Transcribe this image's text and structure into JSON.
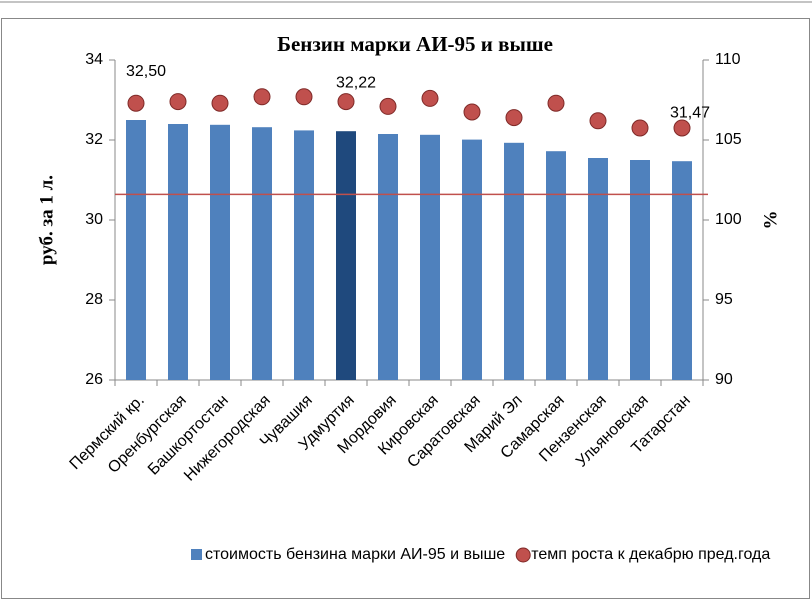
{
  "chart_data": {
    "type": "bar",
    "title": "Бензин марки АИ-95 и выше",
    "ylabel": "руб. за 1 л.",
    "y2label": "%",
    "categories": [
      "Пермский кр.",
      "Оренбургская",
      "Башкортостан",
      "Нижегородская",
      "Чувашия",
      "Удмуртия",
      "Мордовия",
      "Кировская",
      "Саратовская",
      "Марий Эл",
      "Самарская",
      "Пензенская",
      "Ульяновская",
      "Татарстан"
    ],
    "series": [
      {
        "name": "стоимость бензина марки АИ-95 и выше",
        "type": "bar",
        "color": "#4f81bd",
        "highlight_index": 5,
        "highlight_color": "#1f497d",
        "values": [
          32.5,
          32.4,
          32.38,
          32.32,
          32.24,
          32.22,
          32.15,
          32.13,
          32.01,
          31.93,
          31.72,
          31.55,
          31.5,
          31.47
        ],
        "value_labels": [
          "32,50",
          null,
          null,
          null,
          null,
          "32,22",
          null,
          null,
          null,
          null,
          null,
          null,
          null,
          "31,47"
        ]
      },
      {
        "name": "темп роста к декабрю пред.года",
        "type": "scatter",
        "axis": "y2",
        "color": "#c0504d",
        "values": [
          107.3,
          107.4,
          107.3,
          107.7,
          107.7,
          107.4,
          107.1,
          107.6,
          106.75,
          106.4,
          107.3,
          106.2,
          105.75,
          105.75
        ]
      }
    ],
    "reference_line": {
      "value": 101.6,
      "axis": "y2",
      "color": "#c0504d"
    },
    "ylim": [
      26,
      34
    ],
    "yticks": [
      26,
      28,
      30,
      32,
      34
    ],
    "y2lim": [
      90,
      110
    ],
    "y2ticks": [
      90,
      95,
      100,
      105,
      110
    ],
    "legend": "bottom"
  }
}
